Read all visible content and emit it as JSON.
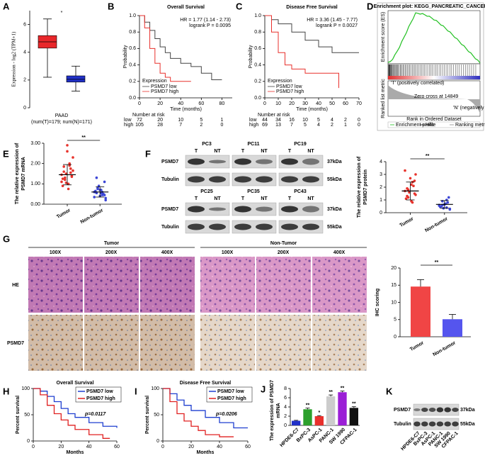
{
  "figure": {
    "a": {
      "letter": "A",
      "ylabel": "Expression - log2 (TPM+1)",
      "category": "PAAD",
      "caption": "(num(T)=179; num(N)=171)",
      "significance": "*",
      "ylim": [
        0,
        7
      ],
      "yticks": [
        0,
        2,
        4,
        6
      ],
      "boxes": [
        {
          "color": "#e8272a",
          "whisker_low": 2.2,
          "q1": 4.3,
          "median": 4.75,
          "q3": 5.2,
          "whisker_high": 6.4
        },
        {
          "color": "#2030c8",
          "whisker_low": 1.2,
          "q1": 1.85,
          "median": 2.05,
          "q3": 2.3,
          "whisker_high": 3.0
        }
      ]
    },
    "b": {
      "letter": "B",
      "title": "Overall Survival",
      "hr": "HR = 1.77 (1.14 - 2.73)",
      "logrank": "logrank P = 0.0095",
      "ylabel": "Probability",
      "xlabel": "Time (months)",
      "legend_title": "Expression",
      "xlim": [
        0,
        90
      ],
      "xticks": [
        0,
        20,
        40,
        60,
        80
      ],
      "ylim": [
        0,
        1
      ],
      "yticks": [
        {
          "value": 0,
          "label": "0.0"
        },
        {
          "value": 0.2,
          "label": "0.2"
        },
        {
          "value": 0.4,
          "label": "0.4"
        },
        {
          "value": 0.6,
          "label": "0.6"
        },
        {
          "value": 0.8,
          "label": "0.8"
        },
        {
          "value": 1,
          "label": "1.0"
        }
      ],
      "series": [
        {
          "name": "PSMD7 low",
          "color": "#444444",
          "x": [
            0,
            5,
            10,
            15,
            20,
            25,
            30,
            40,
            50,
            60,
            70,
            80
          ],
          "y": [
            1,
            0.92,
            0.82,
            0.72,
            0.62,
            0.55,
            0.48,
            0.42,
            0.38,
            0.3,
            0.22,
            0.22
          ]
        },
        {
          "name": "PSMD7 high",
          "color": "#e8302c",
          "x": [
            0,
            5,
            10,
            15,
            20,
            25,
            30,
            40,
            50
          ],
          "y": [
            1,
            0.85,
            0.6,
            0.42,
            0.3,
            0.25,
            0.2,
            0.2,
            0.2
          ]
        }
      ],
      "risk": {
        "title": "Number at risk",
        "rows": [
          {
            "name": "low",
            "values": [
              72,
              20,
              10,
              5,
              1
            ]
          },
          {
            "name": "high",
            "values": [
              105,
              28,
              7,
              2,
              0
            ]
          }
        ]
      }
    },
    "c": {
      "letter": "C",
      "title": "Disease Free Survival",
      "hr": "HR = 3.36 (1.45 - 7.77)",
      "logrank": "logrank P = 0.0027",
      "ylabel": "Probability",
      "xlabel": "Time (months)",
      "legend_title": "Expression",
      "xlim": [
        0,
        70
      ],
      "xticks": [
        0,
        10,
        20,
        30,
        40,
        50,
        60,
        70
      ],
      "ylim": [
        0,
        1
      ],
      "yticks": [
        {
          "value": 0,
          "label": "0.0"
        },
        {
          "value": 0.2,
          "label": "0.2"
        },
        {
          "value": 0.4,
          "label": "0.4"
        },
        {
          "value": 0.6,
          "label": "0.6"
        },
        {
          "value": 0.8,
          "label": "0.8"
        },
        {
          "value": 1,
          "label": "1.0"
        }
      ],
      "series": [
        {
          "name": "PSMD7 low",
          "color": "#444444",
          "x": [
            0,
            5,
            10,
            20,
            30,
            40,
            50,
            60,
            70
          ],
          "y": [
            1,
            0.95,
            0.9,
            0.8,
            0.7,
            0.62,
            0.55,
            0.55,
            0.55
          ]
        },
        {
          "name": "PSMD7 high",
          "color": "#e8302c",
          "x": [
            0,
            5,
            10,
            15,
            20,
            30,
            50,
            55
          ],
          "y": [
            1,
            0.8,
            0.55,
            0.4,
            0.35,
            0.3,
            0.3,
            0.12
          ]
        }
      ],
      "risk": {
        "title": "Number at risk",
        "rows": [
          {
            "name": "low",
            "values": [
              44,
              34,
              16,
              10,
              5,
              4,
              2,
              0
            ]
          },
          {
            "name": "high",
            "values": [
              69,
              13,
              7,
              5,
              4,
              2,
              1,
              0
            ]
          }
        ]
      }
    },
    "d": {
      "letter": "D",
      "title": "Enrichment plot: KEGG_PANCREATIC_CANCER",
      "es_label": "Enrichment score (ES)",
      "metric_label": "Ranked list metric",
      "xlabel": "Rank in Ordered Dataset",
      "pos_label": "'T' (positively correlated)",
      "neg_label": "'N' (negatively correlated)",
      "zero_label": "Zero cross at 14849",
      "legend": [
        "Enrichment profile",
        "Hits",
        "Ranking metric scores"
      ]
    },
    "e": {
      "letter": "E",
      "ylabel": [
        "The relative expression of",
        "PSMD7 mRNA"
      ],
      "significance": "**",
      "ylim": [
        0,
        3
      ],
      "yticks": [
        {
          "value": 0,
          "label": "0.00"
        },
        {
          "value": 1,
          "label": "1.00"
        },
        {
          "value": 2,
          "label": "2.00"
        },
        {
          "value": 3,
          "label": "3.00"
        }
      ],
      "groups": [
        {
          "name": "Tumor",
          "color": "#e8332c",
          "mean": 1.45,
          "sd": 0.5,
          "values": [
            1.45,
            1.9,
            1.2,
            2.3,
            1.0,
            1.6,
            1.35,
            2.6,
            0.9,
            1.75,
            1.5,
            1.1,
            2.0,
            1.3,
            1.65,
            0.75,
            1.85,
            1.4,
            2.9,
            1.25,
            1.55,
            1.05
          ]
        },
        {
          "name": "Non-tumor",
          "color": "#3c46d6",
          "mean": 0.6,
          "sd": 0.25,
          "values": [
            0.6,
            0.45,
            0.8,
            0.3,
            0.7,
            0.55,
            1.1,
            0.4,
            0.65,
            0.5,
            0.9,
            0.35,
            0.6,
            0.75,
            0.2,
            0.55,
            1.3,
            0.45,
            0.7,
            0.6
          ]
        }
      ]
    },
    "f": {
      "letter": "F",
      "samples": [
        "PC3",
        "PC11",
        "PC19",
        "PC25",
        "PC35",
        "PC43"
      ],
      "lanes": [
        "T",
        "NT"
      ],
      "rows": [
        "PSMD7",
        "Tubulin"
      ],
      "sizes": [
        "37kDa",
        "55kDa"
      ],
      "plot": {
        "ylabel": [
          "The relative expression of",
          "PSMD7 protein"
        ],
        "significance": "**",
        "ylim": [
          0,
          4
        ],
        "yticks": [
          0,
          1,
          2,
          3,
          4
        ],
        "groups": [
          {
            "name": "Tumor",
            "color": "#e8332c",
            "mean": 1.7,
            "sd": 0.7,
            "values": [
              1.7,
              2.4,
              1.2,
              3.0,
              0.9,
              1.9,
              1.5,
              2.7,
              1.1,
              2.1,
              1.6,
              3.3,
              0.8,
              1.8,
              1.4,
              2.2,
              1.3,
              2.5
            ]
          },
          {
            "name": "Non-tumor",
            "color": "#3c46d6",
            "mean": 0.65,
            "sd": 0.3,
            "values": [
              0.6,
              0.4,
              0.9,
              0.3,
              0.7,
              0.5,
              1.2,
              0.65,
              0.45,
              0.8,
              0.35,
              0.55,
              1.0,
              0.6,
              0.25,
              0.7
            ]
          }
        ]
      }
    },
    "g": {
      "letter": "G",
      "groups": [
        "Tumor",
        "Non-Tumor"
      ],
      "magnifications": [
        "100X",
        "200X",
        "400X"
      ],
      "rows": [
        "HE",
        "PSMD7"
      ],
      "bar": {
        "ylabel": "IHC scoring",
        "categories": [
          "Tumor",
          "Non-tumor"
        ],
        "values": [
          14.6,
          5.1
        ],
        "errors": [
          2.0,
          1.4
        ],
        "colors": [
          "#f04545",
          "#5555ee"
        ],
        "ylim": [
          0,
          20
        ],
        "yticks": [
          0,
          5,
          10,
          15,
          20
        ],
        "significance": "**"
      }
    },
    "h": {
      "letter": "H",
      "title": "Overall Survival",
      "ylabel": "Percent survival",
      "xlabel": "Months",
      "p_label": "p=0.0117",
      "xlim": [
        0,
        60
      ],
      "xticks": [
        0,
        20,
        40,
        60
      ],
      "ylim": [
        0,
        100
      ],
      "yticks": [
        0,
        50,
        100
      ],
      "series": [
        {
          "name": "PSMD7 low",
          "color": "#1f3fd0",
          "x": [
            0,
            5,
            10,
            15,
            20,
            25,
            30,
            40,
            50,
            60
          ],
          "y": [
            100,
            95,
            85,
            75,
            62,
            52,
            45,
            35,
            28,
            25
          ]
        },
        {
          "name": "PSMD7 high",
          "color": "#e02020",
          "x": [
            0,
            5,
            10,
            15,
            20,
            25,
            30,
            40,
            50,
            55
          ],
          "y": [
            100,
            88,
            68,
            52,
            40,
            30,
            22,
            12,
            5,
            5
          ]
        }
      ]
    },
    "i": {
      "letter": "I",
      "title": "Disease Free Survival",
      "ylabel": "Percent survival",
      "xlabel": "Months",
      "p_label": "p=0.0206",
      "xlim": [
        0,
        60
      ],
      "xticks": [
        0,
        20,
        40,
        60
      ],
      "ylim": [
        0,
        100
      ],
      "yticks": [
        0,
        50,
        100
      ],
      "series": [
        {
          "name": "PSMD7 low",
          "color": "#1f3fd0",
          "x": [
            0,
            5,
            10,
            15,
            20,
            30,
            40,
            50,
            60
          ],
          "y": [
            100,
            90,
            78,
            68,
            58,
            45,
            35,
            25,
            25
          ]
        },
        {
          "name": "PSMD7 high",
          "color": "#e02020",
          "x": [
            0,
            5,
            10,
            15,
            20,
            25,
            30,
            40,
            50
          ],
          "y": [
            100,
            75,
            52,
            38,
            28,
            20,
            12,
            8,
            8
          ]
        }
      ]
    },
    "j": {
      "letter": "J",
      "ylabel": [
        "The expression of PSMD7",
        "mRNA"
      ],
      "categories": [
        "HPDE6-C7",
        "BxPC-3",
        "AsPC-1",
        "PANC-1",
        "SW 1990",
        "CFPAC-1"
      ],
      "values": [
        1.0,
        3.5,
        2.0,
        6.3,
        7.2,
        3.8
      ],
      "errors": [
        0.1,
        0.25,
        0.12,
        0.3,
        0.25,
        0.25
      ],
      "colors": [
        "#2030c8",
        "#2ca02c",
        "#e8302c",
        "#cccccc",
        "#9b1fd6",
        "#111111"
      ],
      "stars": [
        null,
        "**",
        "*",
        "**",
        "**",
        "**"
      ],
      "ylim": [
        0,
        8
      ],
      "yticks": [
        0,
        2,
        4,
        6,
        8
      ]
    },
    "k": {
      "letter": "K",
      "rows": [
        "PSMD7",
        "Tubulin"
      ],
      "sizes": [
        "37kDa",
        "55kDa"
      ],
      "lanes": [
        "HPDE6-C7",
        "BxPC-3",
        "AsPC-1",
        "PANC-1",
        "SW 1990",
        "CFPAC-1"
      ]
    }
  }
}
